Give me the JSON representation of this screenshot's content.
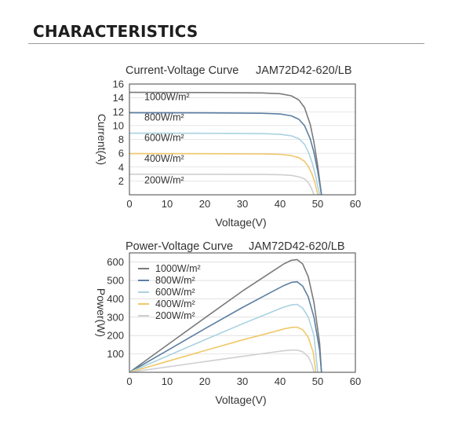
{
  "section": {
    "title": "CHARACTERISTICS"
  },
  "colors": {
    "s1000": "#7a7a7c",
    "s800": "#5c7fa3",
    "s600": "#a9d2e2",
    "s400": "#f0c869",
    "s200": "#cfcfd3",
    "grid": "#cfcfcf",
    "axis": "#444444"
  },
  "chart_data": [
    {
      "type": "line",
      "title": "Current-Voltage Curve",
      "model": "JAM72D42-620/LB",
      "xlabel": "Voltage(V)",
      "ylabel": "Current(A)",
      "xlim": [
        0,
        60
      ],
      "ylim": [
        0,
        16
      ],
      "xticks": [
        "0",
        "10",
        "20",
        "30",
        "40",
        "50",
        "60"
      ],
      "yticks": [
        "2",
        "4",
        "6",
        "8",
        "10",
        "12",
        "14",
        "16"
      ],
      "grid": true,
      "legend": "inside-left",
      "series": [
        {
          "name": "1000W/m²",
          "color_key": "s1000",
          "x": [
            0,
            20,
            35,
            40,
            43,
            45,
            46.5,
            48,
            49,
            50,
            51
          ],
          "y": [
            14.8,
            14.78,
            14.72,
            14.6,
            14.3,
            13.7,
            12.6,
            10.2,
            7.6,
            4.2,
            0
          ]
        },
        {
          "name": "800W/m²",
          "color_key": "s800",
          "x": [
            0,
            20,
            35,
            40,
            43,
            45,
            46.5,
            48,
            49,
            50,
            51
          ],
          "y": [
            11.85,
            11.83,
            11.78,
            11.68,
            11.4,
            10.9,
            10.0,
            8.1,
            6.1,
            3.4,
            0
          ]
        },
        {
          "name": "600W/m²",
          "color_key": "s600",
          "x": [
            0,
            20,
            35,
            40,
            43,
            45,
            46.5,
            47.5,
            48.5,
            49.5,
            50.5
          ],
          "y": [
            8.9,
            8.88,
            8.84,
            8.75,
            8.52,
            8.1,
            7.3,
            6.2,
            4.7,
            2.6,
            0
          ]
        },
        {
          "name": "400W/m²",
          "color_key": "s400",
          "x": [
            0,
            20,
            35,
            40,
            43,
            45,
            46.5,
            47.5,
            48.5,
            49.3,
            50
          ],
          "y": [
            5.95,
            5.93,
            5.9,
            5.84,
            5.66,
            5.36,
            4.85,
            4.1,
            3.0,
            1.7,
            0
          ]
        },
        {
          "name": "200W/m²",
          "color_key": "s200",
          "x": [
            0,
            20,
            35,
            40,
            43,
            45,
            46.5,
            47.5,
            48.3,
            49
          ],
          "y": [
            2.97,
            2.96,
            2.94,
            2.9,
            2.8,
            2.6,
            2.3,
            1.75,
            1.0,
            0
          ]
        }
      ]
    },
    {
      "type": "line",
      "title": "Power-Voltage Curve",
      "model": "JAM72D42-620/LB",
      "xlabel": "Voltage(V)",
      "ylabel": "Power(W)",
      "xlim": [
        0,
        60
      ],
      "ylim": [
        0,
        650
      ],
      "xticks": [
        "0",
        "10",
        "20",
        "30",
        "40",
        "50",
        "60"
      ],
      "yticks": [
        "100",
        "200",
        "300",
        "400",
        "500",
        "600"
      ],
      "grid": true,
      "legend": "top-left",
      "series": [
        {
          "name": "1000W/m²",
          "color_key": "s1000",
          "x": [
            0,
            10,
            20,
            30,
            38,
            41,
            43,
            44.5,
            46,
            47.5,
            49,
            50.5,
            51
          ],
          "y": [
            0,
            148,
            296,
            442,
            550,
            590,
            610,
            614,
            590,
            520,
            380,
            160,
            0
          ]
        },
        {
          "name": "800W/m²",
          "color_key": "s800",
          "x": [
            0,
            10,
            20,
            30,
            38,
            41,
            43,
            44.5,
            46,
            47.5,
            49,
            50.5,
            51
          ],
          "y": [
            0,
            118,
            237,
            353,
            440,
            472,
            489,
            493,
            470,
            410,
            300,
            120,
            0
          ]
        },
        {
          "name": "600W/m²",
          "color_key": "s600",
          "x": [
            0,
            10,
            20,
            30,
            38,
            41,
            43,
            44.5,
            46,
            47.5,
            49,
            50
          ],
          "y": [
            0,
            88,
            177,
            264,
            330,
            355,
            367,
            370,
            350,
            300,
            200,
            0
          ]
        },
        {
          "name": "400W/m²",
          "color_key": "s400",
          "x": [
            0,
            10,
            20,
            30,
            38,
            41,
            43,
            44.5,
            46,
            47.5,
            48.8,
            49.5
          ],
          "y": [
            0,
            59,
            118,
            176,
            219,
            236,
            244,
            246,
            232,
            190,
            110,
            0
          ]
        },
        {
          "name": "200W/m²",
          "color_key": "s200",
          "x": [
            0,
            10,
            20,
            30,
            38,
            41,
            43,
            44.5,
            46,
            47.5,
            48.5,
            49
          ],
          "y": [
            0,
            29,
            58,
            87,
            109,
            117,
            121,
            121,
            112,
            85,
            40,
            0
          ]
        }
      ]
    }
  ]
}
